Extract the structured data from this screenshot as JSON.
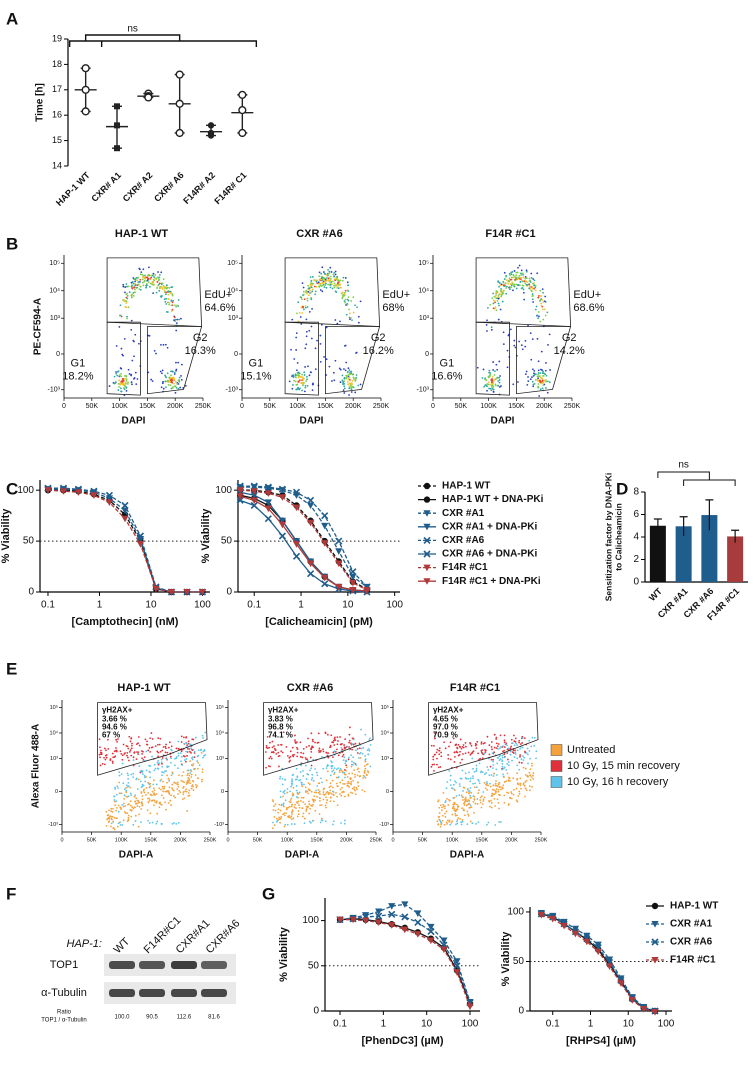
{
  "chart_data": [
    {
      "panel": "A",
      "type": "dot",
      "ylabel": "Time [h]",
      "categories": [
        "HAP-1 WT",
        "CXR# A1",
        "CXR# A2",
        "CXR# A6",
        "F14R# A2",
        "F14R# C1"
      ],
      "values": [
        17.0,
        15.55,
        16.75,
        16.45,
        15.35,
        16.1
      ],
      "points": [
        [
          17.85,
          17.0,
          16.15
        ],
        [
          16.35,
          15.6,
          14.7
        ],
        [
          16.85,
          16.75,
          16.7
        ],
        [
          17.6,
          16.45,
          15.3
        ],
        [
          15.6,
          15.3,
          15.2
        ],
        [
          16.8,
          16.2,
          15.3
        ]
      ],
      "markers": [
        "circle-open",
        "square",
        "circle-open",
        "circle-open",
        "circle",
        "circle-open"
      ],
      "color": "#222222",
      "ylim": [
        14,
        19
      ],
      "yticks": [
        14,
        15,
        16,
        17,
        18,
        19
      ],
      "annotation": "ns"
    },
    {
      "panel": "B",
      "type": "flow",
      "xlabel": "DAPI",
      "ylabel": "PE-CF594-A",
      "yscale": "biexponential",
      "xlim": [
        0,
        250000
      ],
      "ylim": [
        -2000,
        200000
      ],
      "xticks": [
        0,
        {
          "value": 50000,
          "label": "50K"
        },
        {
          "value": 100000,
          "label": "100K"
        },
        {
          "value": 150000,
          "label": "150K"
        },
        {
          "value": 200000,
          "label": "200K"
        },
        {
          "value": 250000,
          "label": "250K"
        }
      ],
      "yticks": [
        {
          "value": -1000,
          "label": "-10³"
        },
        0,
        {
          "value": 1000,
          "label": "10³"
        },
        {
          "value": 10000,
          "label": "10⁴"
        },
        {
          "value": 100000,
          "label": "10⁵"
        }
      ],
      "plots": [
        {
          "title": "HAP-1 WT",
          "gates": [
            {
              "name": "EdU+",
              "value": 64.6,
              "label": "64.6%"
            },
            {
              "name": "G1",
              "value": 18.2,
              "label": "18.2%"
            },
            {
              "name": "G2",
              "value": 16.3,
              "label": "16.3%"
            }
          ]
        },
        {
          "title": "CXR #A6",
          "gates": [
            {
              "name": "EdU+",
              "value": 68,
              "label": "68%"
            },
            {
              "name": "G1",
              "value": 15.1,
              "label": "15.1%"
            },
            {
              "name": "G2",
              "value": 16.2,
              "label": "16.2%"
            }
          ]
        },
        {
          "title": "F14R #C1",
          "gates": [
            {
              "name": "EdU+",
              "value": 68.6,
              "label": "68.6%"
            },
            {
              "name": "G1",
              "value": 16.6,
              "label": "16.6%"
            },
            {
              "name": "G2",
              "value": 14.2,
              "label": "14.2%"
            }
          ]
        }
      ]
    },
    {
      "panel": "C",
      "type": "line",
      "xlabel": "[Camptothecin] (nM)",
      "ylabel": "% Viability",
      "xscale": "log",
      "x": [
        0.1,
        0.2,
        0.39,
        0.78,
        1.56,
        3.13,
        6.25,
        12.5,
        25,
        50,
        100
      ],
      "xlim": [
        0.07,
        140
      ],
      "xticks": [
        0.1,
        1,
        10,
        100
      ],
      "ylim": [
        0,
        110
      ],
      "yticks": [
        0,
        50,
        100
      ],
      "hline": 50,
      "series": [
        {
          "color": "#111111",
          "marker": "circle",
          "dash": true,
          "values": [
            100,
            100,
            99,
            96,
            90,
            76,
            50,
            3,
            0,
            0,
            0
          ]
        },
        {
          "color": "#1f5d8c",
          "marker": "triangle-down",
          "dash": true,
          "values": [
            101,
            101,
            100,
            98,
            92,
            80,
            52,
            4,
            0,
            0,
            0
          ]
        },
        {
          "color": "#1f5d8c",
          "marker": "x",
          "dash": true,
          "values": [
            102,
            102,
            101,
            99,
            95,
            85,
            55,
            5,
            0,
            0,
            0
          ]
        },
        {
          "color": "#b03a3a",
          "marker": "triangle-down",
          "dash": true,
          "values": [
            100,
            99,
            98,
            95,
            88,
            72,
            47,
            3,
            0,
            0,
            0
          ]
        }
      ]
    },
    {
      "type": "line",
      "xlabel": "[Calicheamicin] (pM)",
      "ylabel": "% Viability",
      "xscale": "log",
      "x": [
        0.05,
        0.1,
        0.2,
        0.4,
        0.8,
        1.6,
        3.2,
        6.4,
        12.8,
        25.6
      ],
      "xlim": [
        0.045,
        130
      ],
      "xticks": [
        0.1,
        1,
        10,
        100
      ],
      "ylim": [
        0,
        110
      ],
      "yticks": [
        0,
        50,
        100
      ],
      "hline": 50,
      "legend": "right",
      "series": [
        {
          "name": "HAP-1 WT",
          "color": "#111111",
          "marker": "circle",
          "dash": true,
          "values": [
            100,
            100,
            98,
            95,
            85,
            70,
            50,
            30,
            10,
            3
          ]
        },
        {
          "name": "HAP-1 WT + DNA-PKi",
          "color": "#111111",
          "marker": "circle",
          "dash": false,
          "values": [
            95,
            92,
            85,
            70,
            50,
            30,
            15,
            5,
            2,
            1
          ]
        },
        {
          "name": "CXR #A1",
          "color": "#1f5d8c",
          "marker": "triangle-down",
          "dash": true,
          "values": [
            103,
            103,
            102,
            100,
            95,
            85,
            65,
            40,
            15,
            5
          ]
        },
        {
          "name": "CXR #A1 + DNA-PKi",
          "color": "#1f5d8c",
          "marker": "triangle-down",
          "dash": false,
          "values": [
            98,
            95,
            88,
            70,
            50,
            30,
            15,
            5,
            2,
            1
          ]
        },
        {
          "name": "CXR #A6",
          "color": "#1f5d8c",
          "marker": "x",
          "dash": true,
          "values": [
            104,
            104,
            103,
            101,
            98,
            90,
            75,
            50,
            20,
            5
          ]
        },
        {
          "name": "CXR #A6 + DNA-PKi",
          "color": "#1f5d8c",
          "marker": "x",
          "dash": false,
          "values": [
            90,
            85,
            72,
            55,
            35,
            18,
            8,
            3,
            1,
            0
          ]
        },
        {
          "name": "F14R #C1",
          "color": "#b03a3a",
          "marker": "triangle-down",
          "dash": true,
          "values": [
            100,
            99,
            97,
            93,
            83,
            68,
            48,
            28,
            9,
            2
          ]
        },
        {
          "name": "F14R #C1 + DNA-PKi",
          "color": "#b03a3a",
          "marker": "triangle-down",
          "dash": false,
          "values": [
            94,
            90,
            82,
            66,
            47,
            28,
            14,
            5,
            2,
            1
          ]
        }
      ]
    },
    {
      "panel": "D",
      "type": "bar",
      "ylabel": [
        "Sensitization factor by DNA-PKi",
        "to Calicheamicin"
      ],
      "categories": [
        "WT",
        "CXR #A1",
        "CXR #A6",
        "F14R #C1"
      ],
      "values": [
        5.0,
        4.95,
        5.95,
        4.05
      ],
      "errors": [
        0.6,
        0.85,
        1.35,
        0.55
      ],
      "colors": [
        "#111111",
        "#1f5d8c",
        "#1f5d8c",
        "#a83c3c"
      ],
      "ylim": [
        0,
        8
      ],
      "yticks": [
        0,
        2,
        4,
        6,
        8
      ],
      "annotation": "ns"
    },
    {
      "panel": "E",
      "type": "flow",
      "xlabel": "DAPI-A",
      "ylabel": "Alexa Fluor 488-A",
      "yscale": "biexponential",
      "gate": "γH2AX+",
      "xlim": [
        0,
        250000
      ],
      "ylim": [
        -2000,
        200000
      ],
      "xticks": [
        0,
        {
          "value": 50000,
          "label": "50K"
        },
        {
          "value": 100000,
          "label": "100K"
        },
        {
          "value": 150000,
          "label": "150K"
        },
        {
          "value": 200000,
          "label": "200K"
        },
        {
          "value": 250000,
          "label": "250K"
        }
      ],
      "yticks": [
        {
          "value": -1000,
          "label": "-10³"
        },
        0,
        {
          "value": 1000,
          "label": "10³"
        },
        {
          "value": 10000,
          "label": "10⁴"
        },
        {
          "value": 100000,
          "label": "10⁵"
        }
      ],
      "legend": "right",
      "series": [
        {
          "name": "Untreated",
          "color": "#f5a23c"
        },
        {
          "name": "10 Gy, 15 min recovery",
          "color": "#e0313a"
        },
        {
          "name": "10 Gy, 16 h recovery",
          "color": "#5ec4ea"
        }
      ],
      "plots": [
        {
          "title": "HAP-1 WT",
          "values": [
            3.66,
            94.6,
            67
          ],
          "value_labels": [
            "3.66 %",
            "94.6 %",
            "67 %"
          ]
        },
        {
          "title": "CXR #A6",
          "values": [
            3.83,
            96.8,
            74.1
          ],
          "value_labels": [
            "3.83 %",
            "96.8 %",
            "74.1 %"
          ]
        },
        {
          "title": "F14R #C1",
          "values": [
            4.65,
            97.0,
            70.9
          ],
          "value_labels": [
            "4.65 %",
            "97.0 %",
            "70.9 %"
          ]
        }
      ]
    },
    {
      "panel": "F",
      "type": "blot",
      "group_label": "HAP-1:",
      "categories": [
        "WT",
        "F14R#C1",
        "CXR#A1",
        "CXR#A6"
      ],
      "rows": [
        "TOP1",
        "α-Tubulin"
      ],
      "ratio_label": [
        "Ratio",
        "TOP1 / α-Tubulin"
      ],
      "values": [
        100.0,
        90.5,
        112.6,
        81.6
      ],
      "value_labels": [
        "100.0",
        "90.5",
        "112.6",
        "81.6"
      ]
    },
    {
      "panel": "G",
      "type": "line",
      "xlabel": "[PhenDC3] (µM)",
      "ylabel": "% Viability",
      "xscale": "log",
      "x": [
        0.1,
        0.2,
        0.39,
        0.78,
        1.56,
        3.13,
        6.25,
        12.5,
        25,
        50,
        100
      ],
      "xlim": [
        0.045,
        170
      ],
      "xticks": [
        0.1,
        1,
        10,
        100
      ],
      "ylim": [
        0,
        125
      ],
      "yticks": [
        0,
        50,
        100
      ],
      "hline": 50,
      "series": [
        {
          "color": "#111111",
          "marker": "circle",
          "dash": false,
          "values": [
            101,
            102,
            101,
            99,
            96,
            92,
            87,
            80,
            70,
            45,
            8
          ]
        },
        {
          "color": "#1f5d8c",
          "marker": "triangle-down",
          "dash": true,
          "values": [
            101,
            103,
            106,
            110,
            116,
            118,
            108,
            93,
            78,
            55,
            10
          ]
        },
        {
          "color": "#1f5d8c",
          "marker": "x",
          "dash": true,
          "values": [
            101,
            102,
            104,
            105,
            107,
            104,
            98,
            88,
            73,
            50,
            9
          ]
        },
        {
          "color": "#b03a3a",
          "marker": "triangle-down",
          "dash": true,
          "values": [
            101,
            101,
            100,
            98,
            95,
            90,
            85,
            78,
            68,
            43,
            5
          ]
        }
      ]
    },
    {
      "type": "line",
      "xlabel": "[RHPS4] (µM)",
      "ylabel": "% Viability",
      "xscale": "log",
      "x": [
        0.05,
        0.1,
        0.2,
        0.4,
        0.8,
        1.6,
        3.2,
        6.4,
        12.8,
        25.6,
        51.2
      ],
      "xlim": [
        0.025,
        144
      ],
      "xticks": [
        0.1,
        1,
        10,
        100
      ],
      "ylim": [
        0,
        105
      ],
      "yticks": [
        0,
        50,
        100
      ],
      "hline": 50,
      "legend": "right",
      "series": [
        {
          "name": "HAP-1 WT",
          "color": "#111111",
          "marker": "circle",
          "dash": false,
          "values": [
            98,
            95,
            88,
            80,
            72,
            62,
            47,
            30,
            12,
            3,
            0
          ]
        },
        {
          "name": "CXR #A1",
          "color": "#1f5d8c",
          "marker": "triangle-down",
          "dash": true,
          "values": [
            99,
            96,
            90,
            83,
            76,
            67,
            52,
            33,
            14,
            4,
            0
          ]
        },
        {
          "name": "CXR #A6",
          "color": "#1f5d8c",
          "marker": "x",
          "dash": true,
          "values": [
            98,
            95,
            88,
            80,
            73,
            64,
            49,
            31,
            13,
            3,
            0
          ]
        },
        {
          "name": "F14R #C1",
          "color": "#b03a3a",
          "marker": "triangle-down",
          "dash": true,
          "values": [
            97,
            93,
            86,
            78,
            70,
            60,
            45,
            28,
            11,
            2,
            -1
          ]
        }
      ]
    }
  ]
}
